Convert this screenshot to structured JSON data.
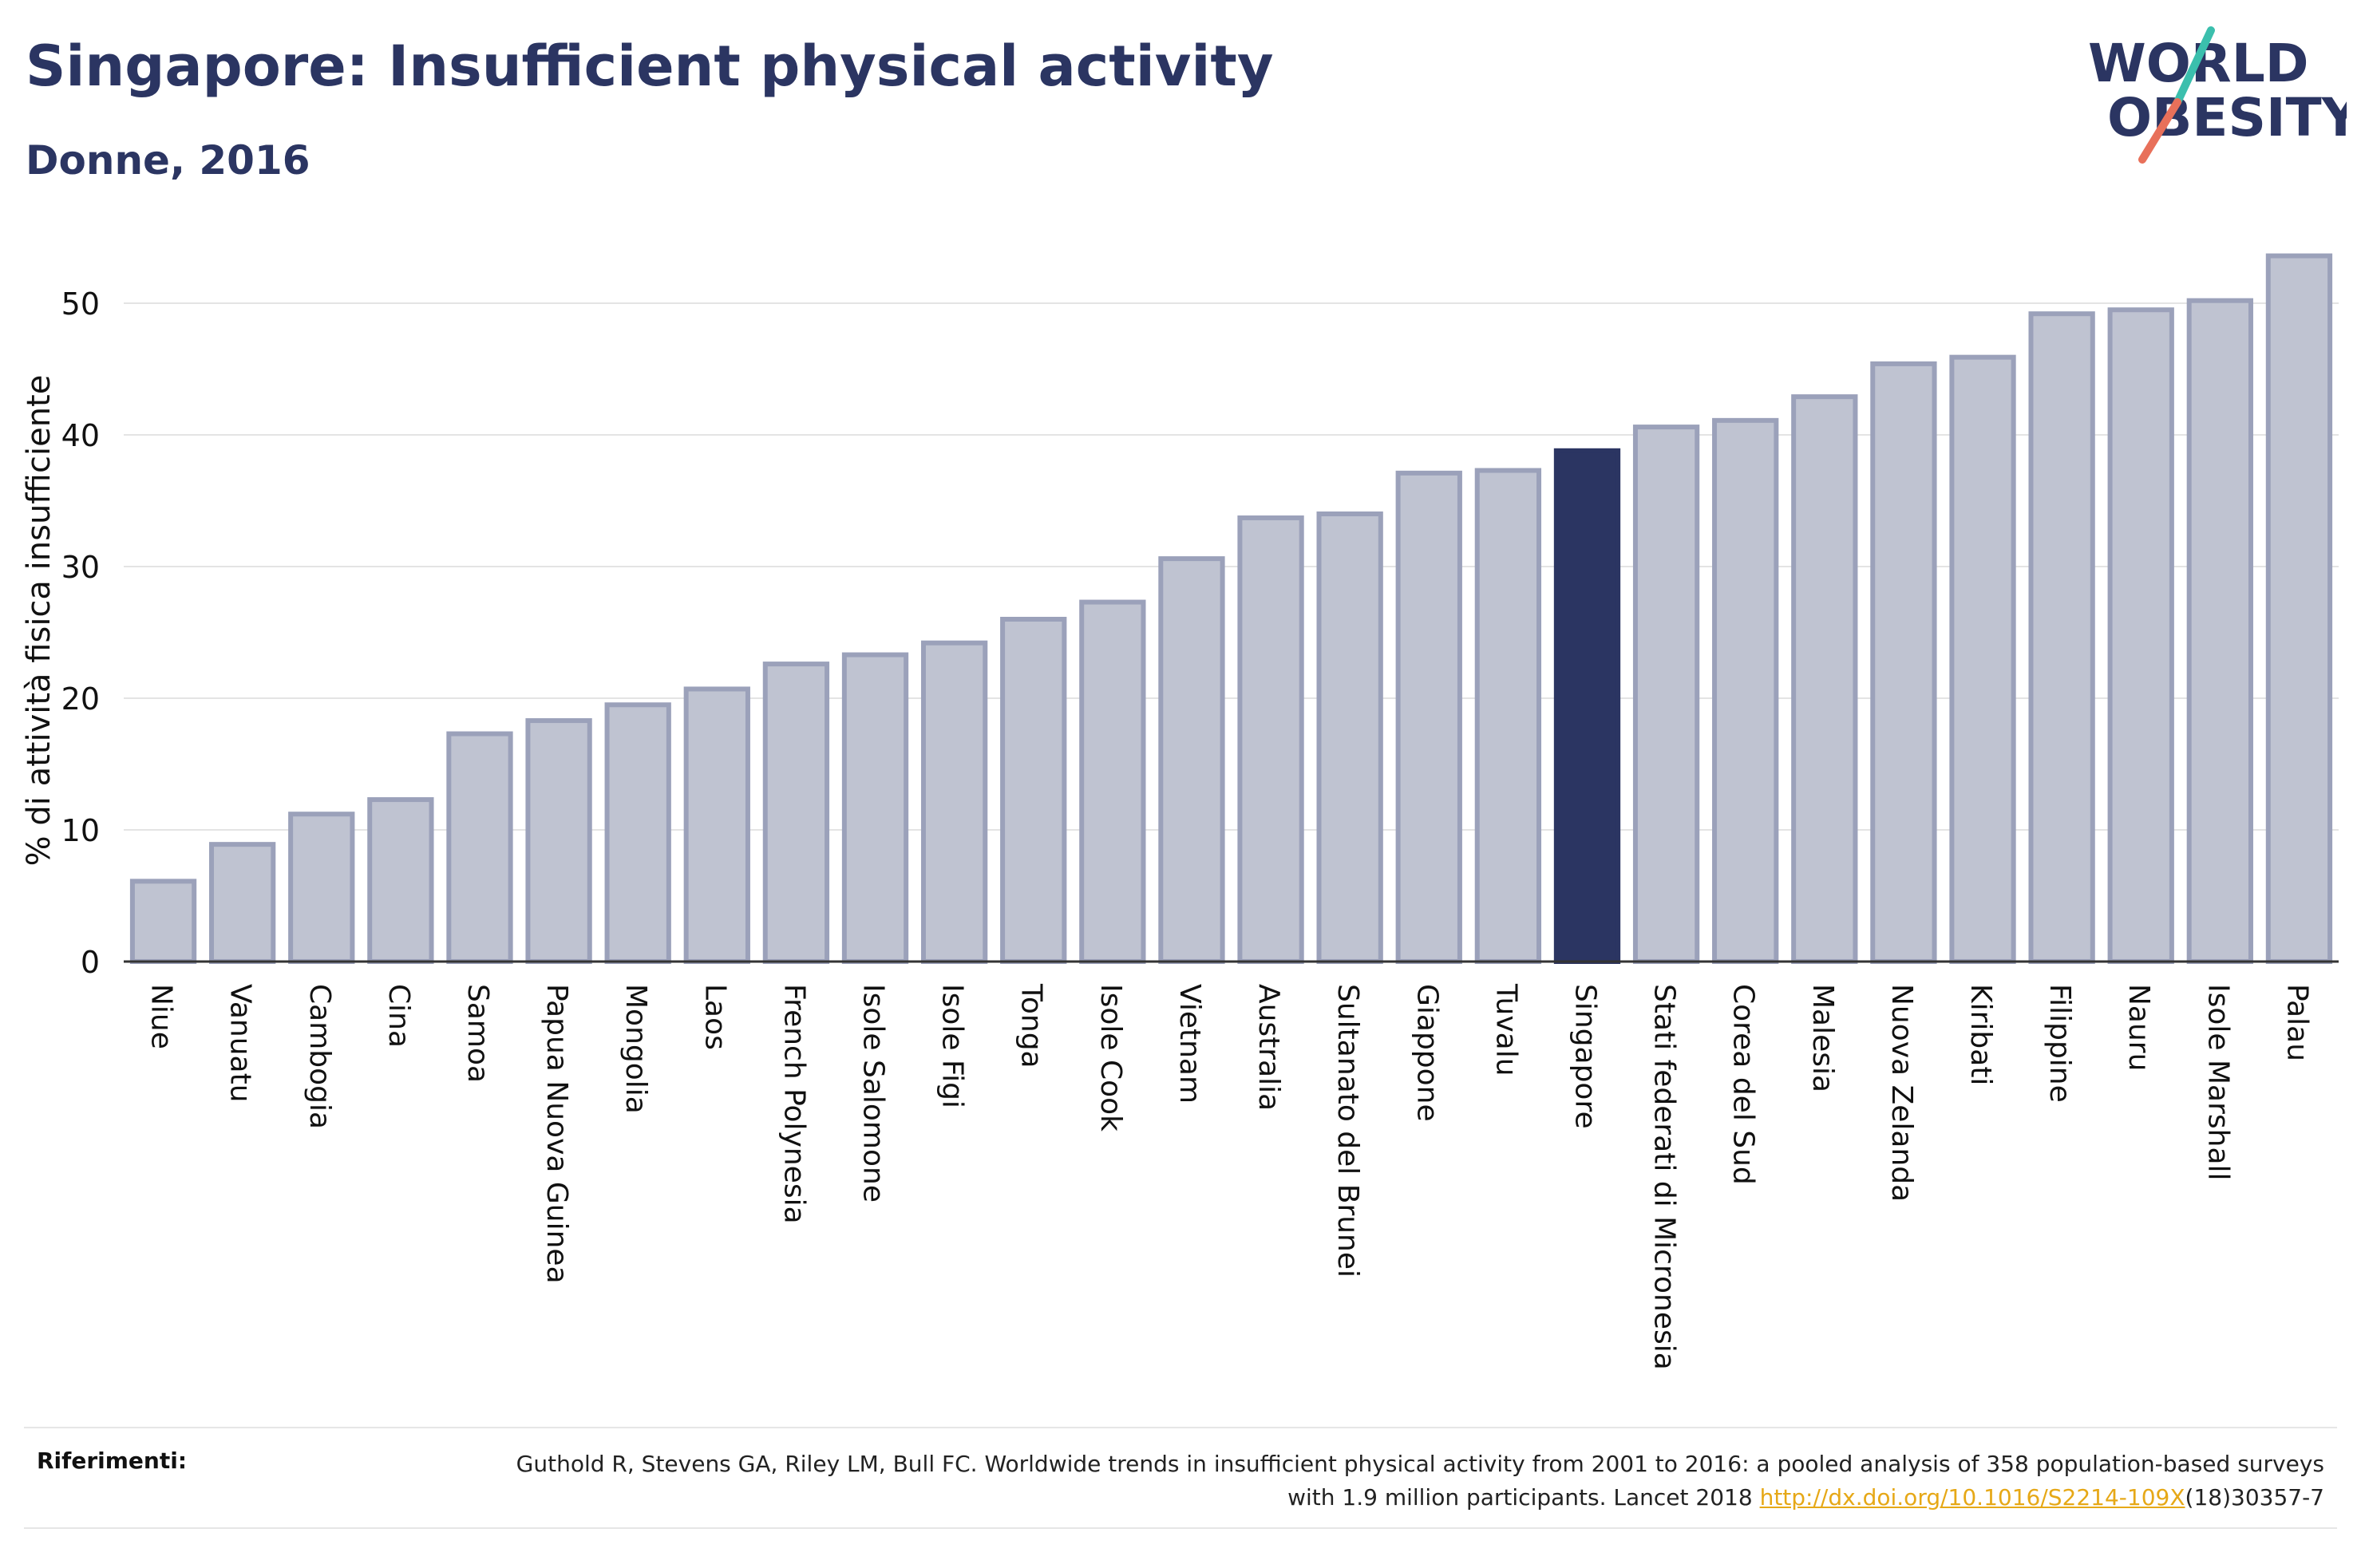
{
  "header": {
    "title": "Singapore: Insufficient physical activity",
    "subtitle": "Donne, 2016"
  },
  "logo": {
    "line1": "WORLD",
    "line2": "OBESITY",
    "colors": {
      "text": "#2b3562",
      "slash_teal": "#3bbfad",
      "slash_red": "#e8705a"
    }
  },
  "chart_data": {
    "type": "bar",
    "ylabel": "% di attività fisica insufficiente",
    "xlabel": "",
    "ylim": [
      0,
      55
    ],
    "yticks": [
      0,
      10,
      20,
      30,
      40,
      50
    ],
    "grid": true,
    "highlight": "Singapore",
    "colors": {
      "bar": "#bfc3d1",
      "bar_border": "#9ba1ba",
      "highlight": "#2b3562"
    },
    "categories": [
      "Niue",
      "Vanuatu",
      "Cambogia",
      "Cina",
      "Samoa",
      "Papua Nuova Guinea",
      "Mongolia",
      "Laos",
      "French Polynesia",
      "Isole Salomone",
      "Isole Figi",
      "Tonga",
      "Isole Cook",
      "Vietnam",
      "Australia",
      "Sultanato del Brunei",
      "Giappone",
      "Tuvalu",
      "Singapore",
      "Stati federati di Micronesia",
      "Corea del Sud",
      "Malesia",
      "Nuova Zelanda",
      "Kiribati",
      "Filippine",
      "Nauru",
      "Isole Marshall",
      "Palau"
    ],
    "values": [
      6.1,
      8.9,
      11.2,
      12.3,
      17.3,
      18.3,
      19.5,
      20.7,
      22.6,
      23.3,
      24.2,
      26.0,
      27.3,
      30.6,
      33.7,
      34.0,
      37.1,
      37.3,
      38.8,
      40.6,
      41.1,
      42.9,
      45.4,
      45.9,
      49.2,
      49.5,
      50.2,
      53.6
    ]
  },
  "references": {
    "label": "Riferimenti:",
    "text_before": "Guthold R, Stevens GA, Riley LM, Bull FC. Worldwide trends in insufficient physical activity from 2001 to 2016: a pooled analysis of 358 population-based surveys with 1.9 million participants. Lancet 2018 ",
    "link": "http://dx.doi.org/10.1016/S2214-109X",
    "text_after": "(18)30357-7"
  }
}
